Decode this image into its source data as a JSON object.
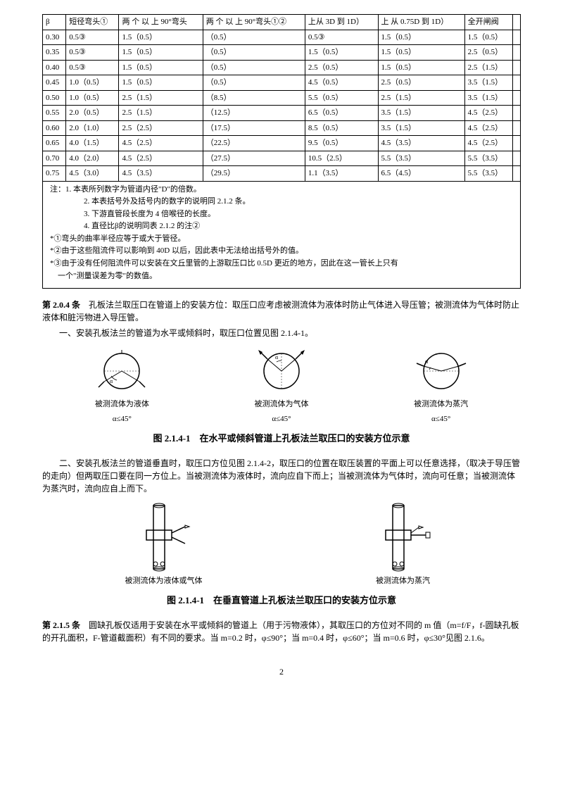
{
  "table": {
    "headers": [
      "β",
      "短径弯头①",
      "两 个 以 上 90°弯头",
      "两 个 以 上 90°弯头①②",
      "上从 3D 到 1D）",
      "上 从  0.75D 到 1D）",
      "全开闸阀",
      ""
    ],
    "rows": [
      [
        "0.30",
        "0.5③",
        "1.5（0.5）",
        "（0.5）",
        "0.5③",
        "1.5（0.5）",
        "1.5（0.5）",
        ""
      ],
      [
        "0.35",
        "0.5③",
        "1.5（0.5）",
        "（0.5）",
        "1.5（0.5）",
        "1.5（0.5）",
        "2.5（0.5）",
        ""
      ],
      [
        "0.40",
        "0.5③",
        "1.5（0.5）",
        "（0.5）",
        "2.5（0.5）",
        "1.5（0.5）",
        "2.5（1.5）",
        ""
      ],
      [
        "0.45",
        "1.0（0.5）",
        "1.5（0.5）",
        "（0.5）",
        "4.5（0.5）",
        "2.5（0.5）",
        "3.5（1.5）",
        ""
      ],
      [
        "0.50",
        "1.0（0.5）",
        "2.5（1.5）",
        "（8.5）",
        "5.5（0.5）",
        "2.5（1.5）",
        "3.5（1.5）",
        ""
      ],
      [
        "0.55",
        "2.0（0.5）",
        "2.5（1.5）",
        "（12.5）",
        "6.5（0.5）",
        "3.5（1.5）",
        "4.5（2.5）",
        ""
      ],
      [
        "0.60",
        "2.0（1.0）",
        "2.5（2.5）",
        "（17.5）",
        "8.5（0.5）",
        "3.5（1.5）",
        "4.5（2.5）",
        ""
      ],
      [
        "0.65",
        "4.0（1.5）",
        "4.5（2.5）",
        "（22.5）",
        "9.5（0.5）",
        "4.5（3.5）",
        "4.5（2.5）",
        ""
      ],
      [
        "0.70",
        "4.0（2.0）",
        "4.5（2.5）",
        "（27.5）",
        "10.5（2.5）",
        "5.5（3.5）",
        "5.5（3.5）",
        ""
      ],
      [
        "0.75",
        "4.5（3.0）",
        "4.5（3.5）",
        "（29.5）",
        "1.1（3.5）",
        "6.5（4.5）",
        "5.5（3.5）",
        ""
      ]
    ]
  },
  "notes": [
    "注：1. 本表所列数字为管道内径\"D\"的倍数。",
    "2. 本表括号外及括号内的数字的说明同 2.1.2 条。",
    "3. 下游直管段长度为 4 倍喉径的长度。",
    "4. 直径比β的说明同表 2.1.2 的注②",
    "*①弯头的曲率半径应等于或大于管径。",
    "*②由于这些阻流件可以影响到 40D 以后，因此表中无法给出括号外的值。",
    "*③由于没有任何阻流件可以安装在文丘里管的上游取压口比 0.5D 更近的地方，因此在这一管长上只有",
    "　一个\"测量误差为零\"的数值。"
  ],
  "article204": {
    "title": "第 2.0.4 条",
    "body1": "　孔板法兰取压口在管道上的安装方位：取压口应考虑被测流体为液体时防止气体进入导压管；被测流体为气体时防止液体和脏污物进入导压管。",
    "item1": "一、安装孔板法兰的管道为水平或倾斜时，取压口位置见图 2.1.4-1。"
  },
  "diag1": {
    "c1": "被测流体为液体",
    "c1a": "α≤45°",
    "c2": "被测流体为气体",
    "c2a": "α≤45°",
    "c3": "被测流体为蒸汽",
    "c3a": "α≤45°"
  },
  "figcap1": "图 2.1.4-1　在水平或倾斜管道上孔板法兰取压口的安装方位示意",
  "para2": "二、安装孔板法兰的管道垂直时，取压口方位见图 2.1.4-2，取压口的位置在取压装置的平面上可以任意选择，（取决于导压管的走向）但两取压口要在同一方位上。当被测流体为液体时，流向应自下而上；当被测流体为气体时，流向可任意；当被测流体为蒸汽时，流向应自上而下。",
  "diag2": {
    "c1": "被测流体为液体或气体",
    "c2": "被测流体为蒸汽"
  },
  "figcap2": "图 2.1.4-1　在垂直管道上孔板法兰取压口的安装方位示意",
  "article215": {
    "title": "第 2.1.5 条",
    "body": "　圆缺孔板仅适用于安装在水平或倾斜的管道上（用于污物液体），其取压口的方位对不同的 m 值（m=f/F，f-圆缺孔板的开孔面积，F-管道截面积）有不同的要求。当 m=0.2 时，φ≤90°；当 m=0.4 时，φ≤60°；当 m=0.6 时，φ≤30°见图 2.1.6。"
  },
  "pageNum": "2"
}
